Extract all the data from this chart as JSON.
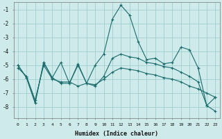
{
  "xlabel": "Humidex (Indice chaleur)",
  "bg_color": "#ceeaea",
  "grid_color": "#9dcfcf",
  "line_color": "#1a6b6b",
  "x": [
    0,
    1,
    2,
    3,
    4,
    5,
    6,
    7,
    8,
    9,
    10,
    11,
    12,
    13,
    14,
    15,
    16,
    17,
    18,
    19,
    20,
    21,
    22,
    23
  ],
  "series1": [
    -5.0,
    -5.9,
    -7.7,
    -4.8,
    -5.9,
    -4.8,
    -6.3,
    -4.9,
    -6.3,
    -5.0,
    -4.2,
    -1.7,
    -0.7,
    -1.4,
    -3.3,
    -4.6,
    -4.5,
    -4.9,
    -4.8,
    -3.7,
    -3.9,
    -5.2,
    -7.9,
    -8.3
  ],
  "series2": [
    -5.0,
    -5.9,
    -7.7,
    -4.8,
    -5.9,
    -6.3,
    -6.3,
    -5.0,
    -6.3,
    -6.5,
    -5.8,
    -4.5,
    -4.2,
    -4.4,
    -4.5,
    -4.8,
    -4.9,
    -5.1,
    -5.2,
    -5.5,
    -5.8,
    -6.2,
    -7.9,
    -7.3
  ],
  "series3": [
    -5.2,
    -5.8,
    -7.5,
    -5.0,
    -6.0,
    -6.2,
    -6.2,
    -6.5,
    -6.3,
    -6.4,
    -6.0,
    -5.5,
    -5.2,
    -5.3,
    -5.4,
    -5.6,
    -5.7,
    -5.9,
    -6.0,
    -6.2,
    -6.5,
    -6.7,
    -7.0,
    -7.3
  ],
  "ylim": [
    -8.8,
    -0.5
  ],
  "xlim": [
    -0.5,
    23.5
  ],
  "yticks": [
    -8,
    -7,
    -6,
    -5,
    -4,
    -3,
    -2,
    -1
  ],
  "xticks": [
    0,
    1,
    2,
    3,
    4,
    5,
    6,
    7,
    8,
    9,
    10,
    11,
    12,
    13,
    14,
    15,
    16,
    17,
    18,
    19,
    20,
    21,
    22,
    23
  ]
}
